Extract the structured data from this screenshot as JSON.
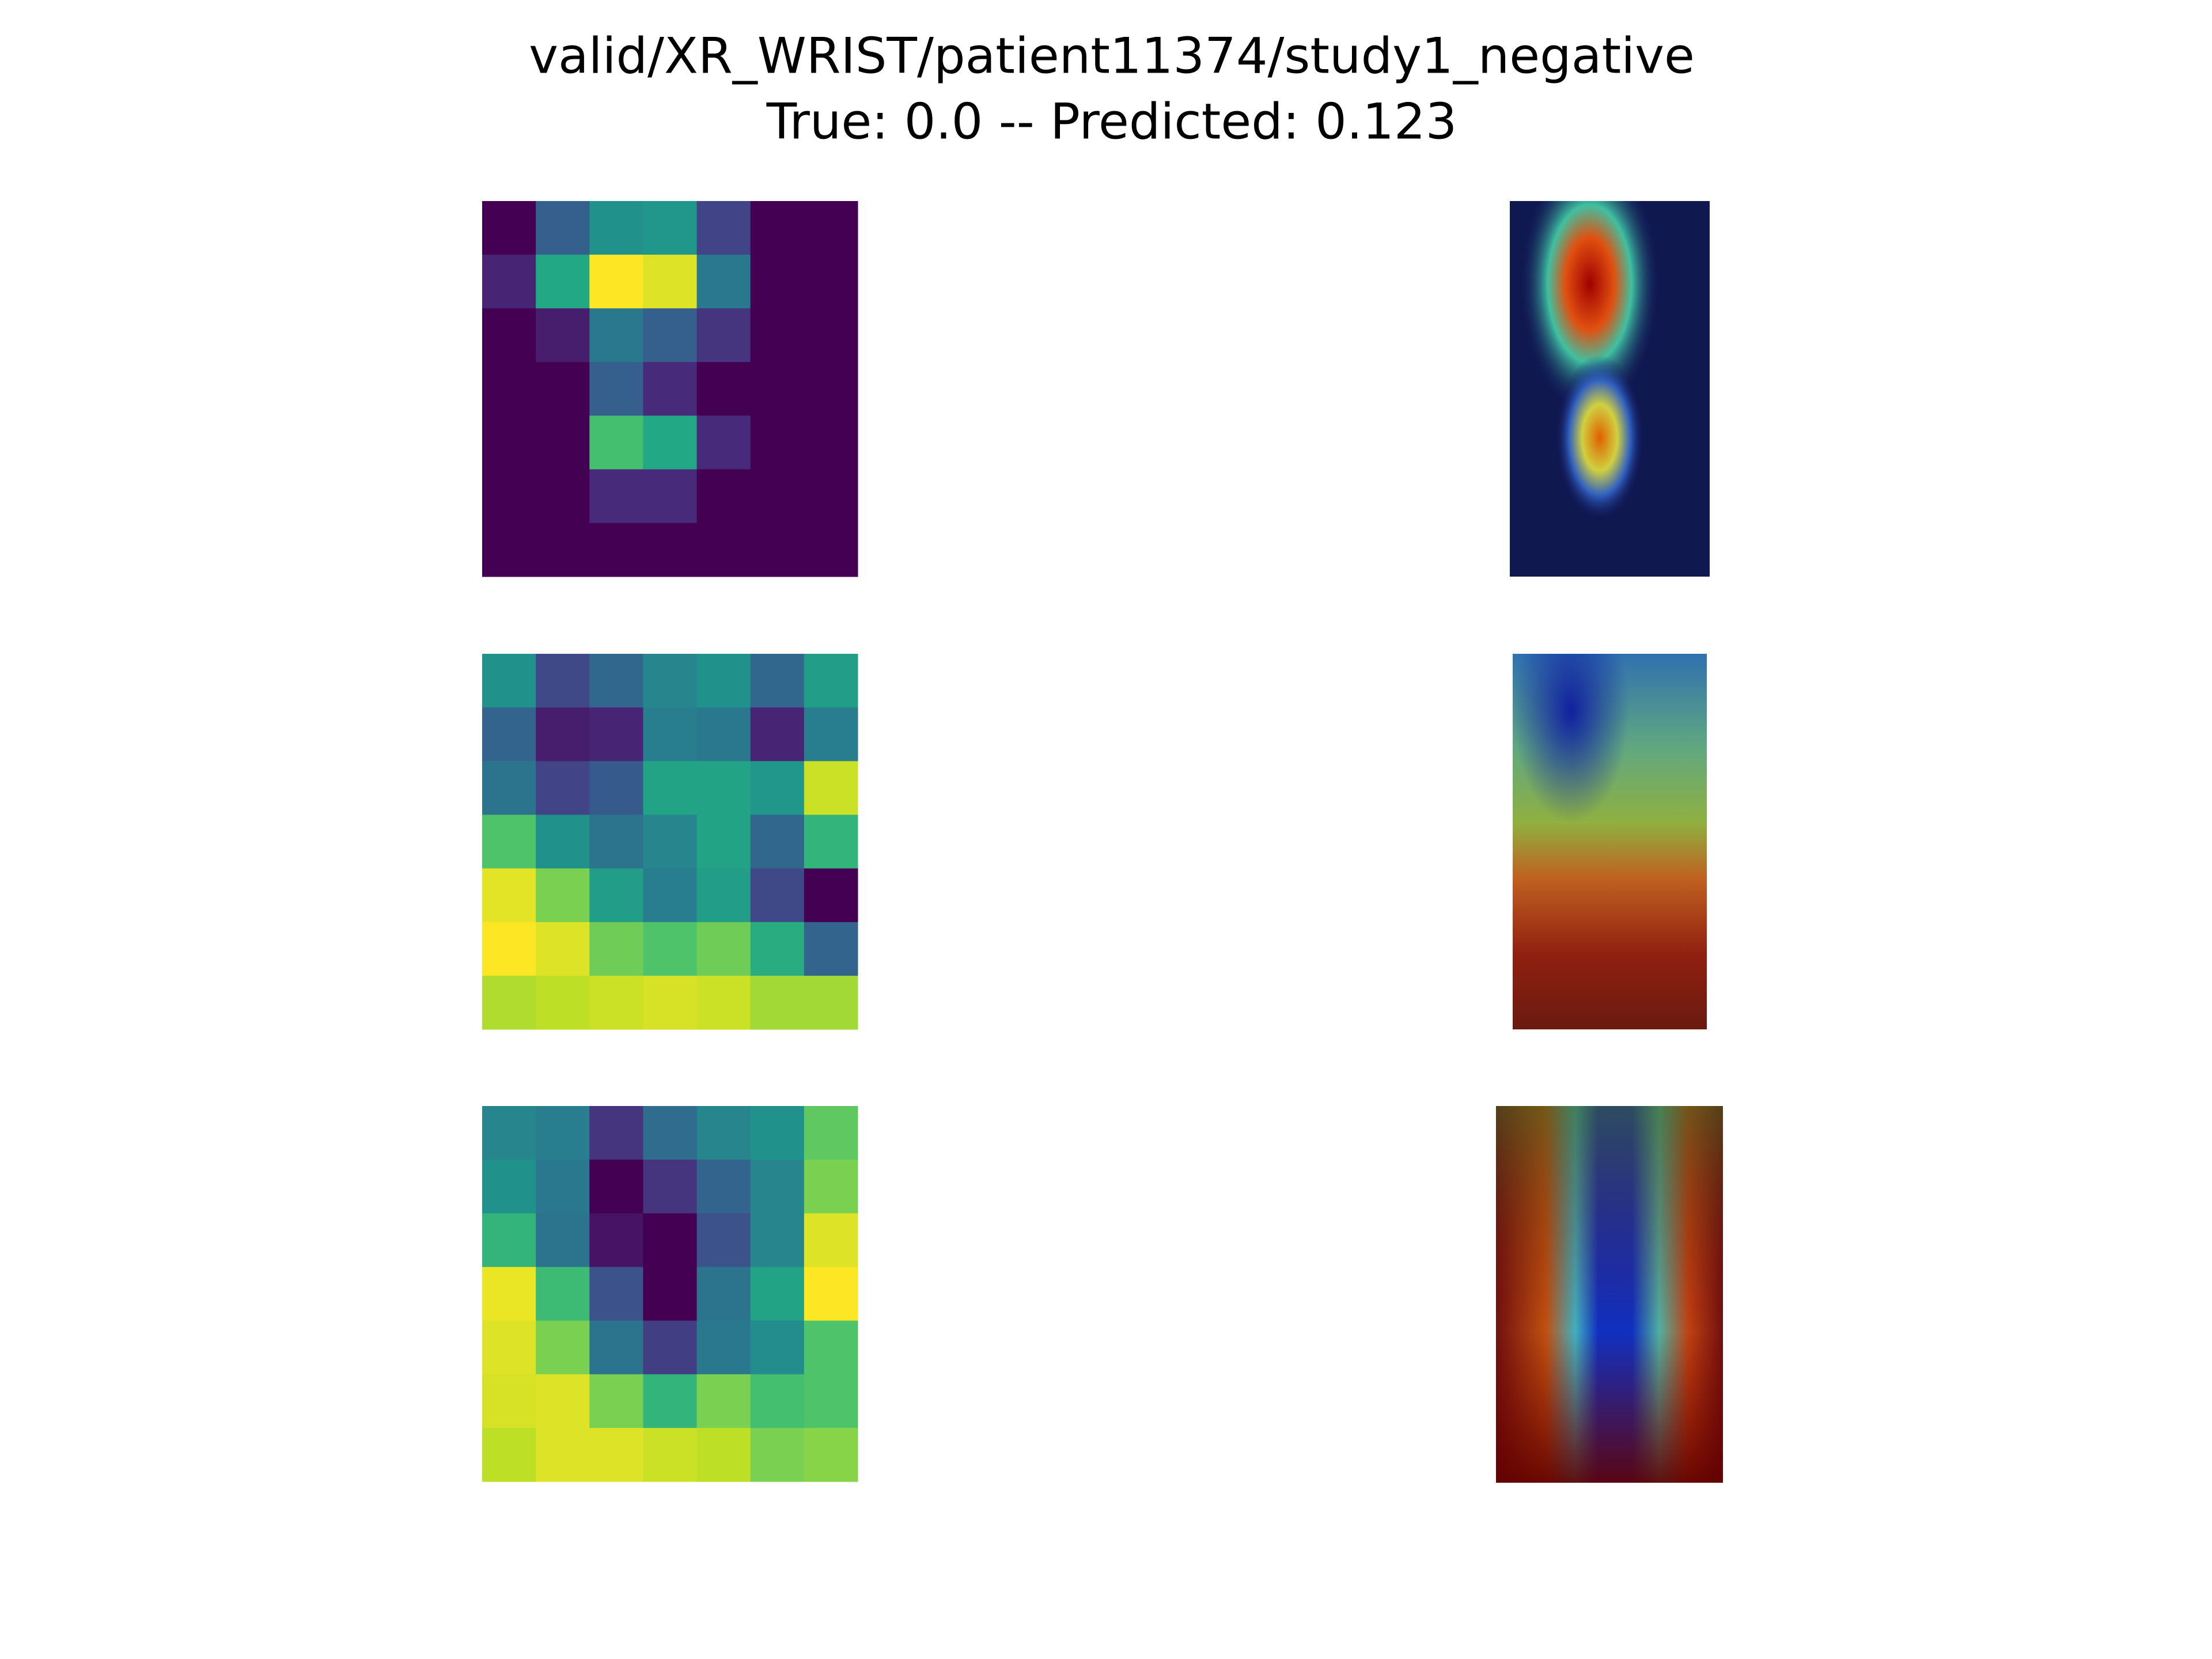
{
  "figure": {
    "title": "valid/XR_WRIST/patient11374/study1_negative",
    "subtitle": "True: 0.0 -- Predicted: 0.123"
  },
  "chart_data": [
    {
      "type": "heatmap",
      "colormap": "viridis",
      "values": [
        [
          0,
          0.3,
          0.5,
          0.52,
          0.2,
          0,
          0
        ],
        [
          0.1,
          0.6,
          1.0,
          0.95,
          0.4,
          0,
          0
        ],
        [
          0,
          0.08,
          0.4,
          0.3,
          0.15,
          0,
          0
        ],
        [
          0,
          0,
          0.3,
          0.12,
          0,
          0,
          0
        ],
        [
          0,
          0,
          0.7,
          0.6,
          0.12,
          0,
          0
        ],
        [
          0,
          0,
          0.12,
          0.12,
          0,
          0,
          0
        ],
        [
          0,
          0,
          0,
          0,
          0,
          0,
          0
        ]
      ]
    },
    {
      "type": "heatmap",
      "colormap": "viridis",
      "values": [
        [
          0.5,
          0.22,
          0.33,
          0.45,
          0.5,
          0.33,
          0.55
        ],
        [
          0.32,
          0.08,
          0.1,
          0.42,
          0.4,
          0.1,
          0.42
        ],
        [
          0.38,
          0.2,
          0.28,
          0.58,
          0.58,
          0.52,
          0.92
        ],
        [
          0.72,
          0.5,
          0.38,
          0.45,
          0.58,
          0.33,
          0.65
        ],
        [
          0.96,
          0.8,
          0.55,
          0.42,
          0.55,
          0.22,
          0
        ],
        [
          1.0,
          0.95,
          0.78,
          0.72,
          0.78,
          0.62,
          0.32
        ],
        [
          0.88,
          0.9,
          0.92,
          0.94,
          0.92,
          0.86,
          0.86
        ]
      ]
    },
    {
      "type": "heatmap",
      "colormap": "viridis",
      "values": [
        [
          0.45,
          0.42,
          0.15,
          0.35,
          0.45,
          0.5,
          0.75
        ],
        [
          0.5,
          0.4,
          0,
          0.15,
          0.32,
          0.45,
          0.8
        ],
        [
          0.65,
          0.38,
          0.05,
          0,
          0.25,
          0.45,
          0.95
        ],
        [
          0.97,
          0.68,
          0.25,
          0,
          0.38,
          0.58,
          1.0
        ],
        [
          0.95,
          0.8,
          0.38,
          0.18,
          0.4,
          0.48,
          0.72
        ],
        [
          0.94,
          0.95,
          0.8,
          0.65,
          0.8,
          0.7,
          0.72
        ],
        [
          0.9,
          0.95,
          0.95,
          0.92,
          0.9,
          0.8,
          0.82
        ]
      ]
    }
  ]
}
